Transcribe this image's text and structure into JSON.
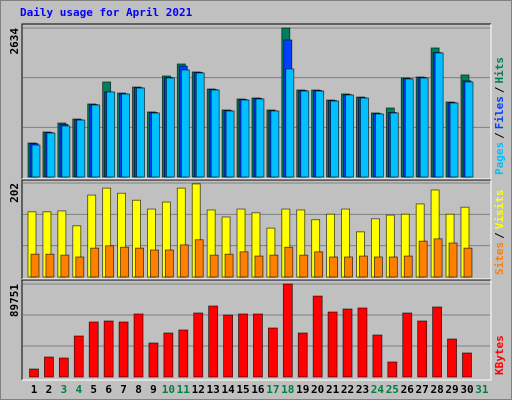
{
  "chart_data": [
    {
      "type": "bar",
      "title": "Daily usage for April 2021",
      "ylim": [
        0,
        2634
      ],
      "yticks": [
        2634
      ],
      "grid": true,
      "legend_separator": "/",
      "series": [
        {
          "name": "Pages",
          "color": "#00c0ff",
          "values": [
            565,
            778,
            902,
            1007,
            1273,
            1503,
            1467,
            1573,
            1132,
            1750,
            1892,
            1839,
            1538,
            1167,
            1361,
            1379,
            1167,
            1910,
            1520,
            1520,
            1343,
            1450,
            1396,
            1114,
            1132,
            1733,
            1750,
            2193,
            1308,
            1680,
            null
          ]
        },
        {
          "name": "Files",
          "color": "#0040ff",
          "values": [
            590,
            785,
            930,
            1010,
            1280,
            1503,
            1470,
            1580,
            1140,
            1760,
            1960,
            1850,
            1545,
            1175,
            1370,
            1390,
            1170,
            2422,
            1530,
            1530,
            1350,
            1455,
            1400,
            1120,
            1140,
            1740,
            1760,
            2200,
            1315,
            1700,
            null
          ]
        },
        {
          "name": "Hits",
          "color": "#00805c",
          "values": [
            601,
            796,
            955,
            1025,
            1291,
            1680,
            1485,
            1591,
            1150,
            1786,
            1998,
            1857,
            1556,
            1185,
            1379,
            1397,
            1185,
            2634,
            1538,
            1538,
            1361,
            1468,
            1414,
            1132,
            1220,
            1751,
            1768,
            2281,
            1326,
            1804,
            null
          ]
        }
      ]
    },
    {
      "type": "bar",
      "ylim": [
        0,
        202
      ],
      "yticks": [
        202
      ],
      "grid": true,
      "legend_separator": "/",
      "series": [
        {
          "name": "Sites",
          "color": "#ff8000",
          "values": [
            49,
            49,
            47,
            43,
            62,
            67,
            64,
            62,
            58,
            58,
            69,
            80,
            47,
            49,
            54,
            45,
            47,
            64,
            47,
            54,
            43,
            43,
            45,
            43,
            43,
            45,
            77,
            82,
            73,
            62,
            null
          ]
        },
        {
          "name": "Visits",
          "color": "#ffff00",
          "values": [
            140,
            140,
            142,
            110,
            176,
            191,
            180,
            165,
            146,
            161,
            191,
            200,
            144,
            129,
            146,
            138,
            105,
            146,
            144,
            123,
            135,
            146,
            97,
            125,
            133,
            135,
            157,
            187,
            135,
            150,
            null
          ]
        }
      ]
    },
    {
      "type": "bar",
      "ylim": [
        0,
        89751
      ],
      "yticks": [
        89751
      ],
      "grid": true,
      "categories": [
        "1",
        "2",
        "3",
        "4",
        "5",
        "6",
        "7",
        "8",
        "9",
        "10",
        "11",
        "12",
        "13",
        "14",
        "15",
        "16",
        "17",
        "18",
        "19",
        "20",
        "21",
        "22",
        "23",
        "24",
        "25",
        "26",
        "27",
        "28",
        "29",
        "30",
        "31"
      ],
      "label_colors": [
        "#000000",
        "#000000",
        "#008040",
        "#008040",
        "#000000",
        "#000000",
        "#000000",
        "#000000",
        "#000000",
        "#008040",
        "#008040",
        "#000000",
        "#000000",
        "#000000",
        "#000000",
        "#000000",
        "#008040",
        "#008040",
        "#000000",
        "#000000",
        "#000000",
        "#000000",
        "#000000",
        "#008040",
        "#008040",
        "#000000",
        "#000000",
        "#000000",
        "#000000",
        "#000000",
        "#008040"
      ],
      "series": [
        {
          "name": "KBytes",
          "color": "#ff0000",
          "values": [
            7720,
            19300,
            18335,
            39570,
            53080,
            54045,
            53080,
            60800,
            32810,
            42460,
            45355,
            61765,
            68520,
            59835,
            60800,
            60800,
            47285,
            89751,
            42460,
            78100,
            62730,
            65625,
            66590,
            40530,
            14475,
            61765,
            54045,
            67555,
            36670,
            23160,
            null
          ]
        }
      ]
    }
  ]
}
